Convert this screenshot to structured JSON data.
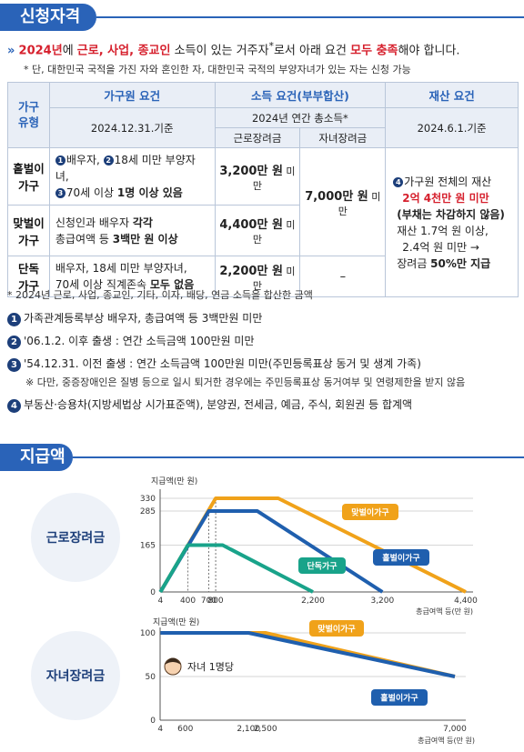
{
  "section1": {
    "title": "신청자격"
  },
  "intro": {
    "arrow": "»",
    "year": "2024년",
    "t1": "에 ",
    "types": "근로, 사업, 종교인",
    "t2": " 소득이 있는 거주자",
    "sup": "*",
    "t3": "로서 아래 요건 ",
    "all": "모두 충족",
    "t4": "해야 합니다.",
    "note": "* 단, 대한민국 국적을 가진 자와 혼인한 자, 대한민국 국적의 부양자녀가 있는 자는 신청 가능"
  },
  "table": {
    "h_type": "가구\n유형",
    "h_member": "가구원 요건",
    "h_income": "소득 요건(부부합산)",
    "h_asset": "재산 요건",
    "member_date": "2024.12.31.기준",
    "income_sub": "2024년 연간 총소득*",
    "asset_date": "2024.6.1.기준",
    "h_work": "근로장려금",
    "h_child": "자녀장려금",
    "rows": [
      {
        "type": "홑벌이\n가구",
        "m1": "배우자, ",
        "m2": "18세 미만 부양자녀,",
        "m3": "70세 이상 ",
        "m3b": "1명 이상 있음",
        "inc_v": "3,200만 원",
        "inc_u": " 미만"
      },
      {
        "type": "맞벌이\n가구",
        "m1": "신청인과 배우자 ",
        "m1b": "각각",
        "m2": "총급여액 등 ",
        "m2b": "3백만 원 이상",
        "inc_v": "4,400만 원",
        "inc_u": " 미만"
      },
      {
        "type": "단독\n가구",
        "m1": "배우자, 18세 미만 부양자녀,",
        "m2": "70세 이상 직계존속 ",
        "m2b": "모두 없음",
        "inc_v": "2,200만 원",
        "inc_u": " 미만"
      }
    ],
    "child_v": "7,000만 원",
    "child_u": " 미만",
    "child_none": "–",
    "asset": {
      "l1": "가구원 전체의 재산",
      "l2": "2억 4천만 원 미만",
      "l3": "(부채는 차감하지 않음)",
      "l4": "재산 1.7억 원 이상,",
      "l5": "2.4억 원 미만 →",
      "l6a": "장려금 ",
      "l6b": "50%만 지급"
    },
    "num1": "1",
    "num2": "2",
    "num3": "3",
    "num4": "4"
  },
  "notes": {
    "star": "* 2024년 근로, 사업, 종교인, 기타, 이자, 배당, 연금 소득을 합산한 금액",
    "n1": "가족관계등록부상 배우자, 총급여액 등 3백만원  미만",
    "n2": "'06.1.2. 이후 출생 : 연간 소득금액 100만원 미만",
    "n3": "'54.12.31. 이전 출생 : 연간 소득금액 100만원 미만(주민등록표상 동거 및 생계 가족)",
    "n3sub": "※ 다만, 중증장애인은 질병 등으로 일시 퇴거한 경우에는 주민등록표상 동거여부 및 연령제한을 받지 않음",
    "n4": "부동산·승용차(지방세법상 시가표준액), 분양권, 전세금, 예금, 주식, 회원권 등 합계액"
  },
  "section2": {
    "title": "지급액"
  },
  "chart_data": [
    {
      "type": "line",
      "label": "근로장려금",
      "ylabel": "지급액(만 원)",
      "xlabel": "총급여액 등(만 원)",
      "x_ticks": [
        "4",
        "400",
        "700",
        "800",
        "2,200",
        "3,200",
        "4,400"
      ],
      "y_ticks": [
        "0",
        "165",
        "285",
        "330"
      ],
      "xlim": [
        0,
        4400
      ],
      "ylim": [
        0,
        330
      ],
      "series": [
        {
          "name": "맞벌이가구",
          "color": "#f0a21a",
          "points": [
            [
              4,
              0
            ],
            [
              800,
              330
            ],
            [
              1700,
              330
            ],
            [
              4400,
              0
            ]
          ]
        },
        {
          "name": "홑벌이가구",
          "color": "#1f5fae",
          "points": [
            [
              4,
              0
            ],
            [
              700,
              285
            ],
            [
              1400,
              285
            ],
            [
              3200,
              0
            ]
          ]
        },
        {
          "name": "단독가구",
          "color": "#19a38a",
          "points": [
            [
              4,
              0
            ],
            [
              400,
              165
            ],
            [
              900,
              165
            ],
            [
              2200,
              0
            ]
          ]
        }
      ]
    },
    {
      "type": "line",
      "label": "자녀장려금",
      "ylabel": "지급액(만 원)",
      "xlabel": "총급여액 등(만 원)",
      "annotation": "자녀 1명당",
      "x_ticks": [
        "4",
        "600",
        "2,100",
        "2,500",
        "7,000"
      ],
      "y_ticks": [
        "0",
        "50",
        "100"
      ],
      "xlim": [
        0,
        7000
      ],
      "ylim": [
        0,
        100
      ],
      "series": [
        {
          "name": "맞벌이가구",
          "color": "#f0a21a",
          "points": [
            [
              4,
              100
            ],
            [
              2500,
              100
            ],
            [
              7000,
              50
            ]
          ]
        },
        {
          "name": "홑벌이가구",
          "color": "#1f5fae",
          "points": [
            [
              4,
              100
            ],
            [
              2100,
              100
            ],
            [
              7000,
              50
            ]
          ]
        }
      ]
    }
  ]
}
